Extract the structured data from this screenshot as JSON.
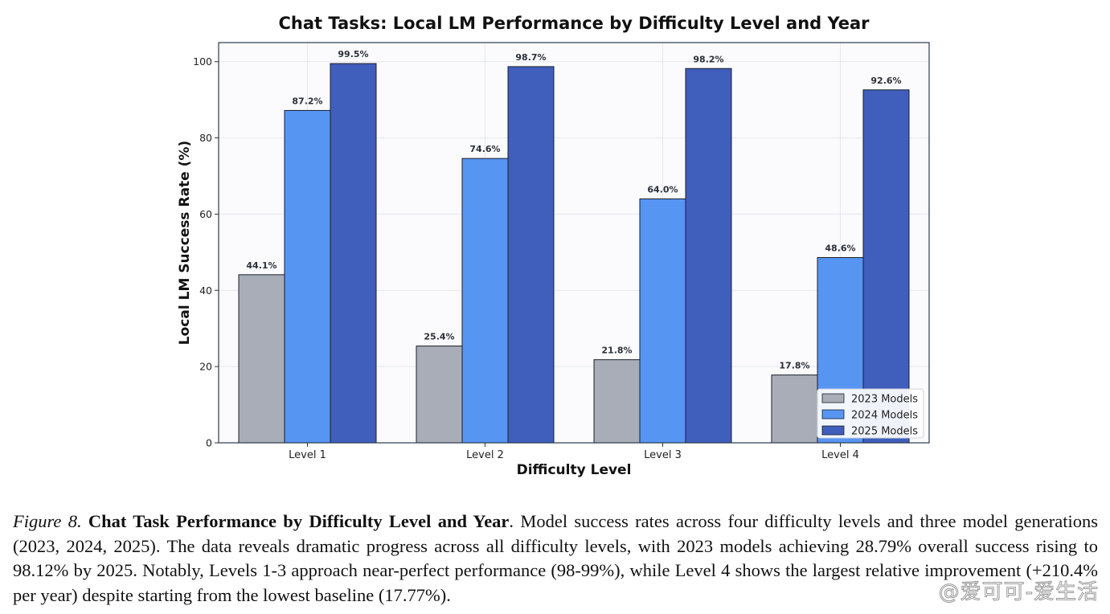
{
  "chart_data": {
    "type": "bar",
    "title": "Chat Tasks: Local LM Performance by Difficulty Level and Year",
    "xlabel": "Difficulty Level",
    "ylabel": "Local LM Success Rate (%)",
    "categories": [
      "Level 1",
      "Level 2",
      "Level 3",
      "Level 4"
    ],
    "series": [
      {
        "name": "2023 Models",
        "color": "#a9adb8",
        "values": [
          44.1,
          25.4,
          21.8,
          17.8
        ],
        "labels": [
          "44.1%",
          "25.4%",
          "21.8%",
          "17.8%"
        ]
      },
      {
        "name": "2024 Models",
        "color": "#5795f2",
        "values": [
          87.2,
          74.6,
          64.0,
          48.6
        ],
        "labels": [
          "87.2%",
          "74.6%",
          "64.0%",
          "48.6%"
        ]
      },
      {
        "name": "2025 Models",
        "color": "#405ebb",
        "values": [
          99.5,
          98.7,
          98.2,
          92.6
        ],
        "labels": [
          "99.5%",
          "98.7%",
          "98.2%",
          "92.6%"
        ]
      }
    ],
    "ylim": [
      0,
      105
    ],
    "yticks": [
      "0",
      "20",
      "40",
      "60",
      "80",
      "100"
    ],
    "grid": true,
    "legend_position": "bottom-right"
  },
  "caption": {
    "label": "Figure 8.",
    "title": "Chat Task Performance by Difficulty Level and Year",
    "body": ".  Model success rates across four difficulty levels and three model generations (2023, 2024, 2025). The data reveals dramatic progress across all difficulty levels, with 2023 models achieving 28.79% overall success rising to 98.12% by 2025. Notably, Levels 1-3 approach near-perfect performance (98-99%), while Level 4 shows the largest relative improvement (+210.4% per year) despite starting from the lowest baseline (17.77%)."
  },
  "watermark": "@爱可可-爱生活"
}
